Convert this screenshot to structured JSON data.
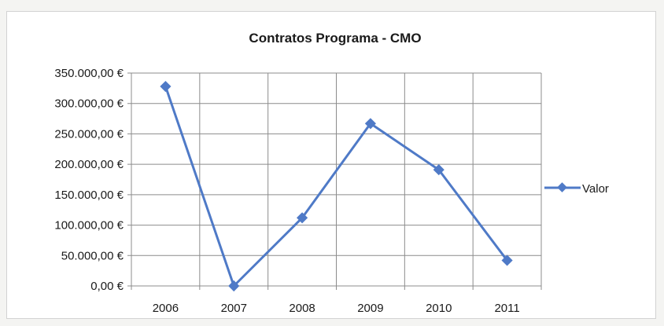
{
  "chart_data": {
    "type": "line",
    "title": "Contratos Programa - CMO",
    "xlabel": "",
    "ylabel": "",
    "categories": [
      "2006",
      "2007",
      "2008",
      "2009",
      "2010",
      "2011"
    ],
    "series": [
      {
        "name": "Valor",
        "values": [
          328000,
          0,
          112000,
          267000,
          191000,
          42000
        ]
      }
    ],
    "ylim": [
      0,
      350000
    ],
    "ytick_values": [
      0,
      50000,
      100000,
      150000,
      200000,
      250000,
      300000,
      350000
    ],
    "ytick_labels": [
      "0,00 €",
      "50.000,00 €",
      "100.000,00 €",
      "150.000,00 €",
      "200.000,00 €",
      "250.000,00 €",
      "300.000,00 €",
      "350.000,00 €"
    ],
    "grid": true,
    "legend_position": "right",
    "colors": {
      "series": "#4f7ac7",
      "grid": "#8c8c8c",
      "axis": "#8c8c8c"
    }
  }
}
